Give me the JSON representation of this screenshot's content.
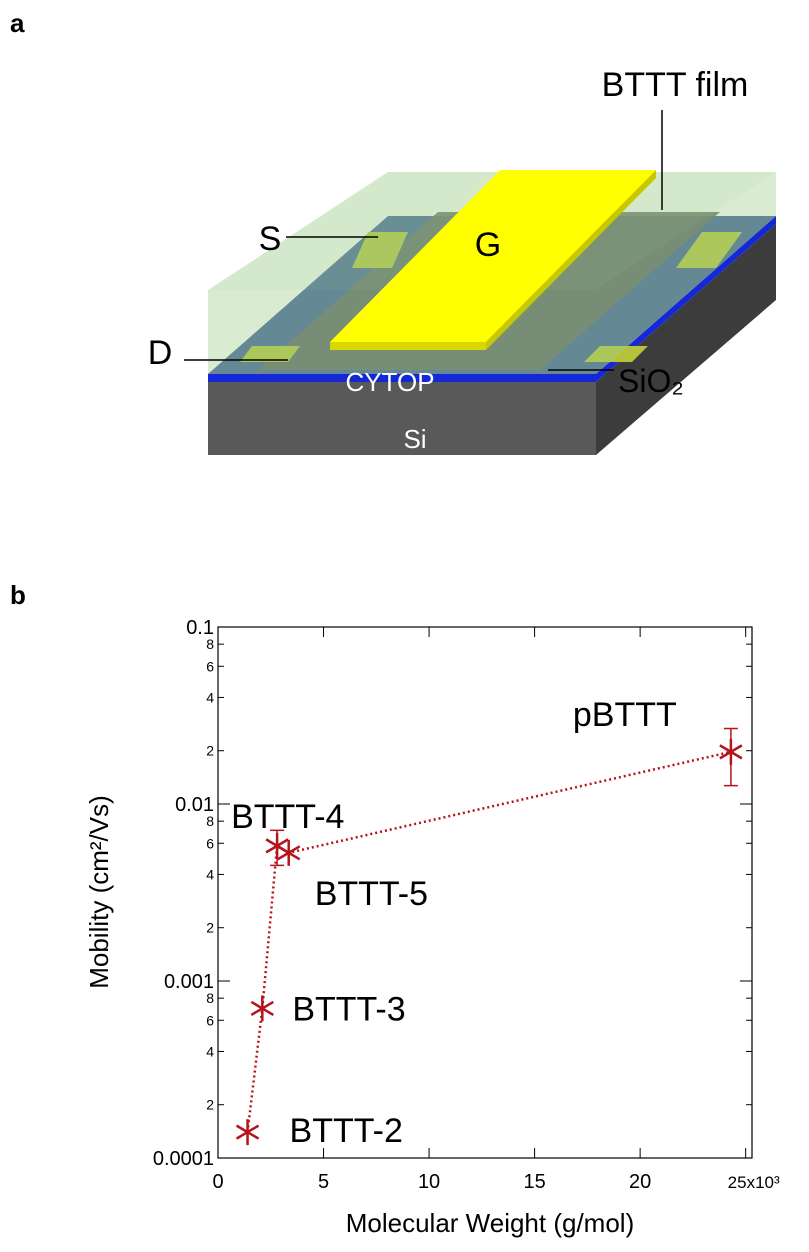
{
  "diagram": {
    "panel_label": "a",
    "labels": {
      "film": "BTTT film",
      "source": "S",
      "gate": "G",
      "drain": "D",
      "dielectric": "CYTOP",
      "oxide": "SiO₂",
      "substrate": "Si"
    }
  },
  "chart_data": {
    "type": "scatter",
    "panel_label": "b",
    "x_label": "Molecular Weight (g/mol)",
    "y_label": "Mobility (cm²/Vs)",
    "xlim": [
      0,
      25.3
    ],
    "xticks": [
      0,
      5,
      10,
      15,
      20,
      {
        "value": 25,
        "label": "25x10³"
      }
    ],
    "ylim": [
      0.0001,
      0.1
    ],
    "log_y": true,
    "grid": false,
    "yticks": [
      0.0001,
      {
        "value": 0.0002,
        "label": "2"
      },
      {
        "value": 0.0004,
        "label": "4"
      },
      {
        "value": 0.0006,
        "label": "6"
      },
      {
        "value": 0.0008,
        "label": "8"
      },
      0.001,
      {
        "value": 0.002,
        "label": "2"
      },
      {
        "value": 0.004,
        "label": "4"
      },
      {
        "value": 0.006,
        "label": "6"
      },
      {
        "value": 0.008,
        "label": "8"
      },
      0.01,
      {
        "value": 0.02,
        "label": "2"
      },
      {
        "value": 0.04,
        "label": "4"
      },
      {
        "value": 0.06,
        "label": "6"
      },
      {
        "value": 0.08,
        "label": "8"
      },
      0.1
    ],
    "series": [
      {
        "color": "#b5141b",
        "point_labels": [
          "BTTT-2",
          "BTTT-3",
          "BTTT-4",
          "BTTT-5",
          "pBTTT"
        ],
        "x": [
          1.4,
          2.1,
          2.8,
          3.35,
          24.3
        ],
        "values": [
          0.00014,
          0.0007,
          0.0058,
          0.0053,
          0.0197
        ],
        "errors": [
          null,
          null,
          0.0013,
          null,
          0.007
        ]
      }
    ]
  }
}
